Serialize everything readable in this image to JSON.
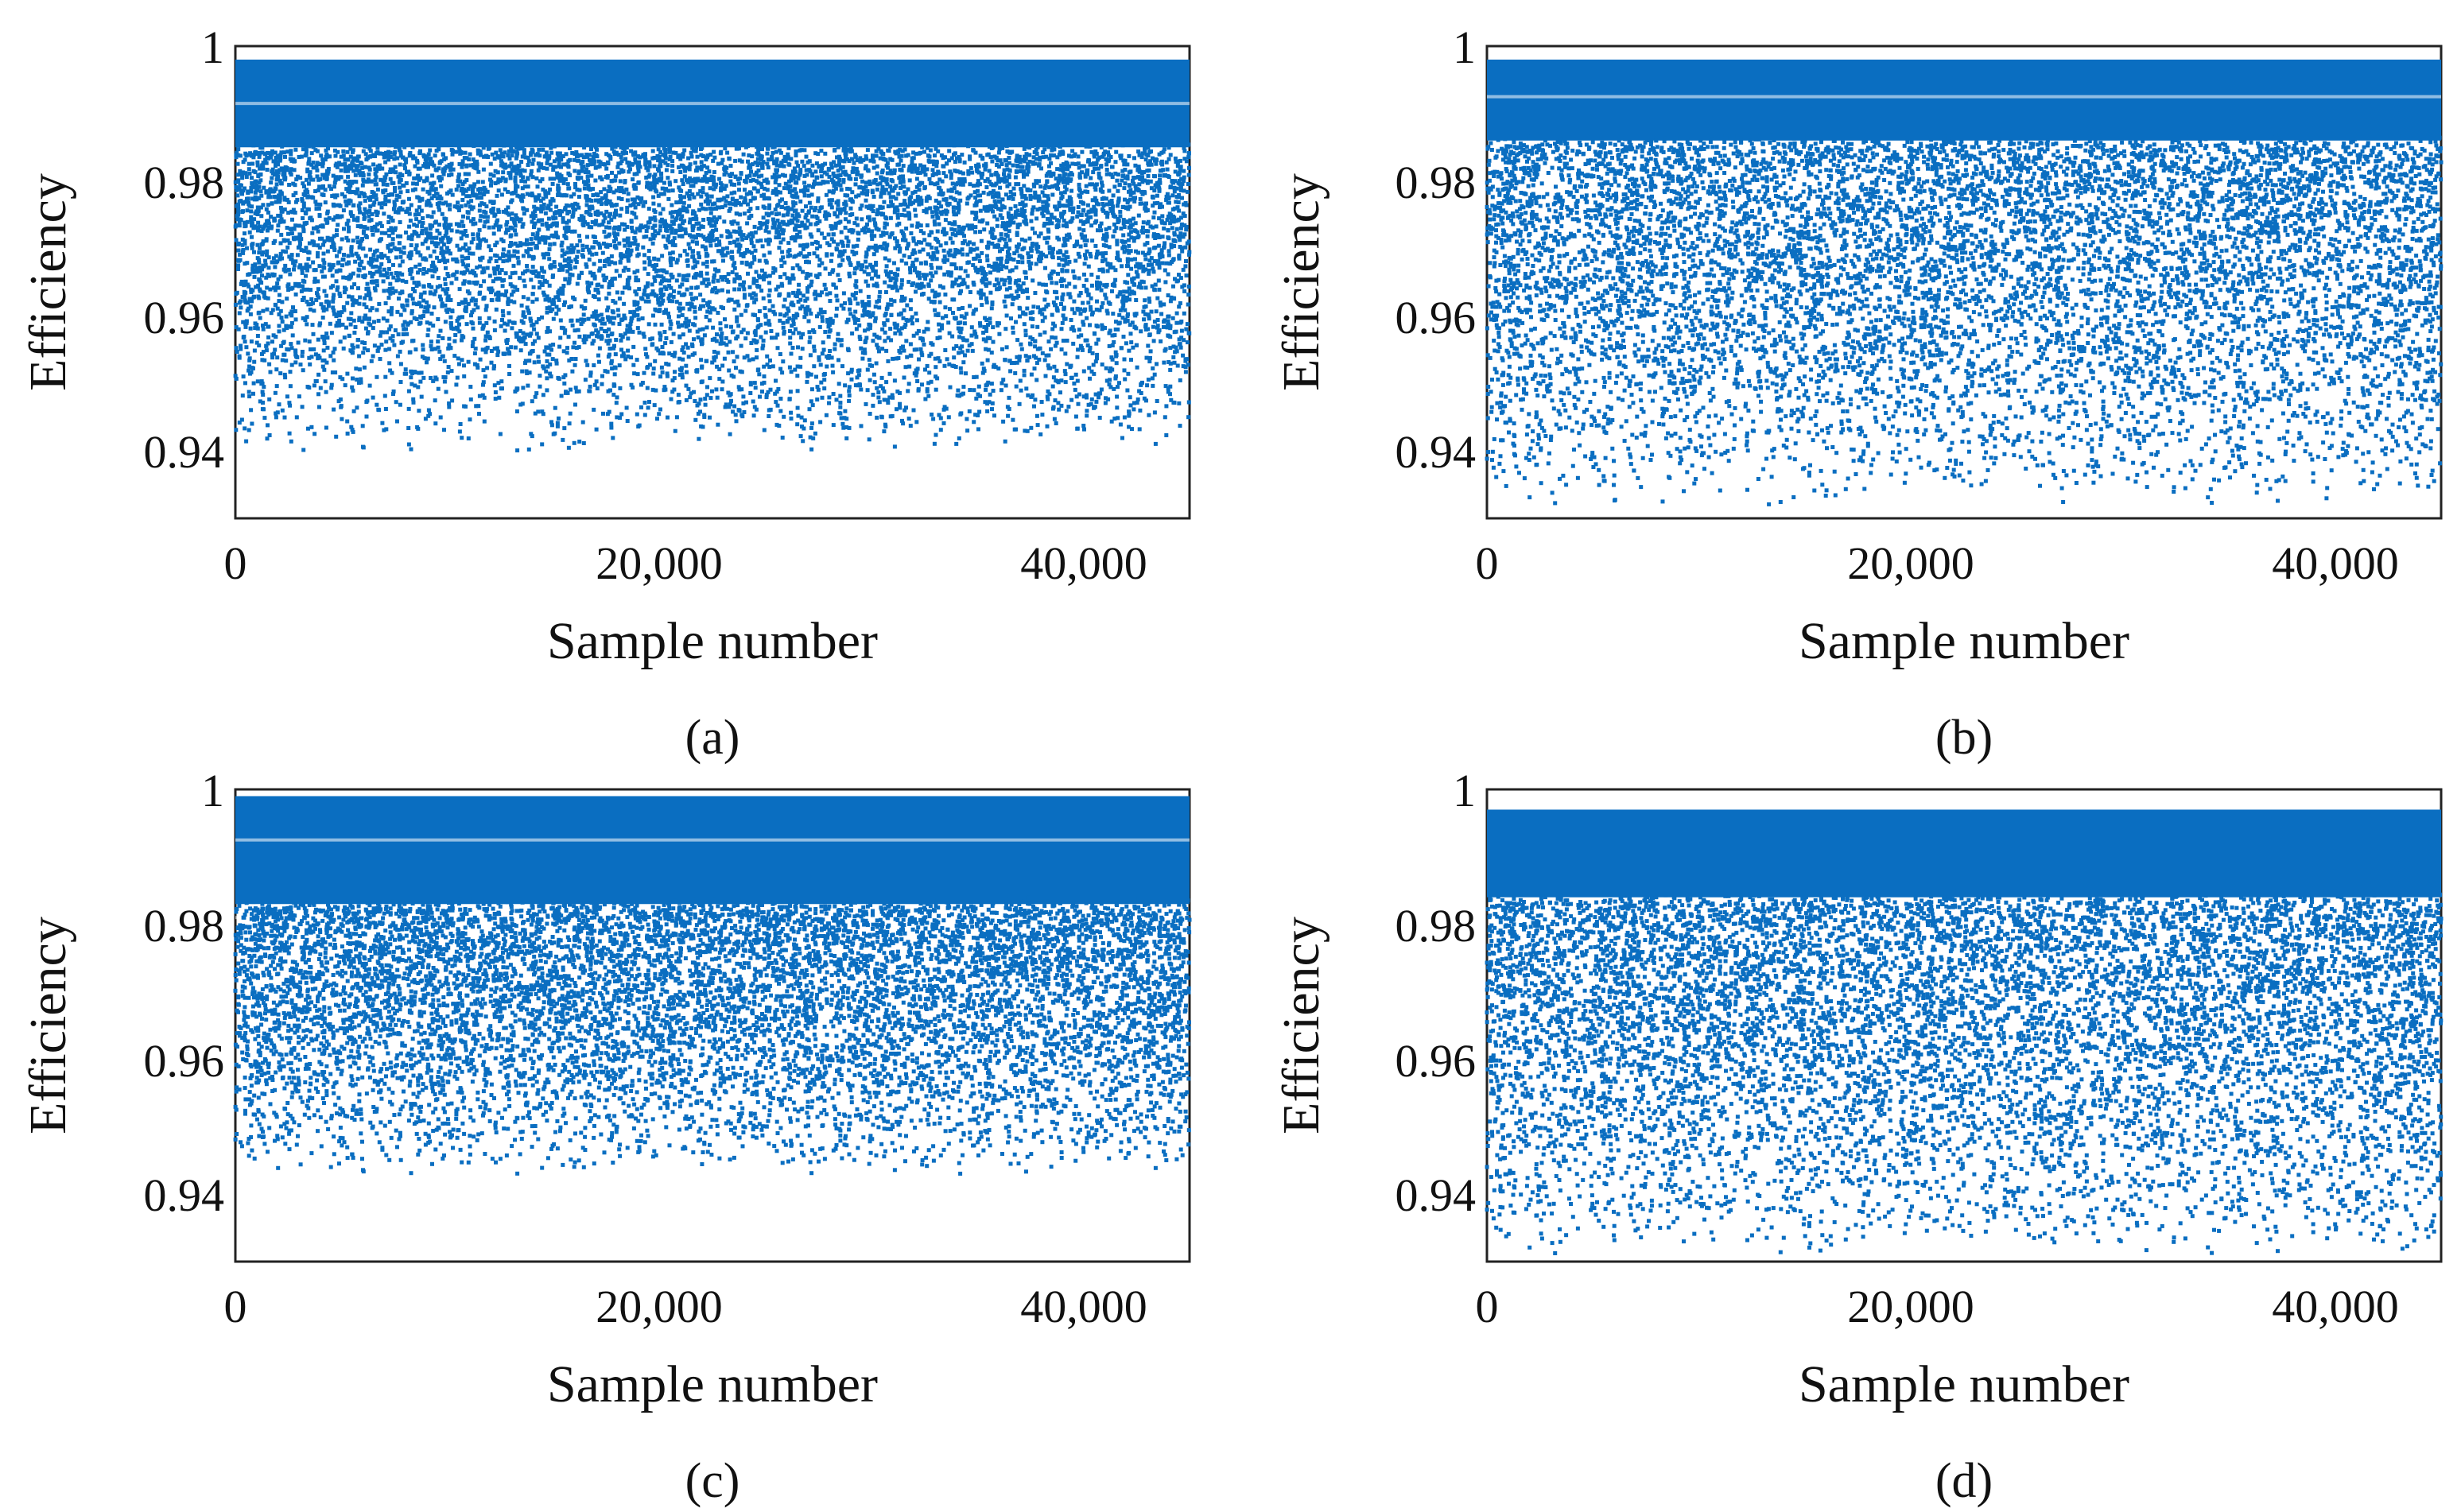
{
  "figure": {
    "colors": {
      "points": "#0a6ec1",
      "frame": "#222222",
      "background": "#ffffff"
    },
    "panel_captions": [
      "(a)",
      "(b)",
      "(c)",
      "(d)"
    ]
  },
  "chart_data": [
    {
      "type": "scatter",
      "panel": "(a)",
      "xlabel": "Sample number",
      "ylabel": "Efficiency",
      "xlim": [
        0,
        45000
      ],
      "ylim": [
        0.93,
        1.0
      ],
      "xticks": [
        0,
        20000,
        40000
      ],
      "xtick_labels": [
        "0",
        "20,000",
        "40,000"
      ],
      "yticks": [
        0.94,
        0.96,
        0.98,
        1
      ],
      "ytick_labels": [
        "0.94",
        "0.96",
        "0.98",
        "1"
      ],
      "n_samples": 45000,
      "series": [
        {
          "name": "efficiency",
          "min": 0.94,
          "max": 0.998,
          "dense_band": [
            0.985,
            0.998
          ],
          "gaps": [
            0.9915
          ]
        }
      ]
    },
    {
      "type": "scatter",
      "panel": "(b)",
      "xlabel": "Sample number",
      "ylabel": "Efficiency",
      "xlim": [
        0,
        45000
      ],
      "ylim": [
        0.93,
        1.0
      ],
      "xticks": [
        0,
        20000,
        40000
      ],
      "xtick_labels": [
        "0",
        "20,000",
        "40,000"
      ],
      "yticks": [
        0.94,
        0.96,
        0.98,
        1
      ],
      "ytick_labels": [
        "0.94",
        "0.96",
        "0.98",
        "1"
      ],
      "n_samples": 45000,
      "series": [
        {
          "name": "efficiency",
          "min": 0.932,
          "max": 0.998,
          "dense_band": [
            0.986,
            0.998
          ],
          "gaps": [
            0.9925
          ]
        }
      ]
    },
    {
      "type": "scatter",
      "panel": "(c)",
      "xlabel": "Sample number",
      "ylabel": "Efficiency",
      "xlim": [
        0,
        45000
      ],
      "ylim": [
        0.93,
        1.0
      ],
      "xticks": [
        0,
        20000,
        40000
      ],
      "xtick_labels": [
        "0",
        "20,000",
        "40,000"
      ],
      "yticks": [
        0.94,
        0.96,
        0.98,
        1
      ],
      "ytick_labels": [
        "0.94",
        "0.96",
        "0.98",
        "1"
      ],
      "n_samples": 45000,
      "series": [
        {
          "name": "efficiency",
          "min": 0.943,
          "max": 0.999,
          "dense_band": [
            0.983,
            0.999
          ],
          "gaps": [
            0.9925,
            0.981
          ]
        }
      ]
    },
    {
      "type": "scatter",
      "panel": "(d)",
      "xlabel": "Sample number",
      "ylabel": "Efficiency",
      "xlim": [
        0,
        45000
      ],
      "ylim": [
        0.93,
        1.0
      ],
      "xticks": [
        0,
        20000,
        40000
      ],
      "xtick_labels": [
        "0",
        "20,000",
        "40,000"
      ],
      "yticks": [
        0.94,
        0.96,
        0.98,
        1
      ],
      "ytick_labels": [
        "0.94",
        "0.96",
        "0.98",
        "1"
      ],
      "n_samples": 45000,
      "series": [
        {
          "name": "efficiency",
          "min": 0.931,
          "max": 0.997,
          "dense_band": [
            0.984,
            0.997
          ],
          "gaps": []
        }
      ]
    }
  ]
}
